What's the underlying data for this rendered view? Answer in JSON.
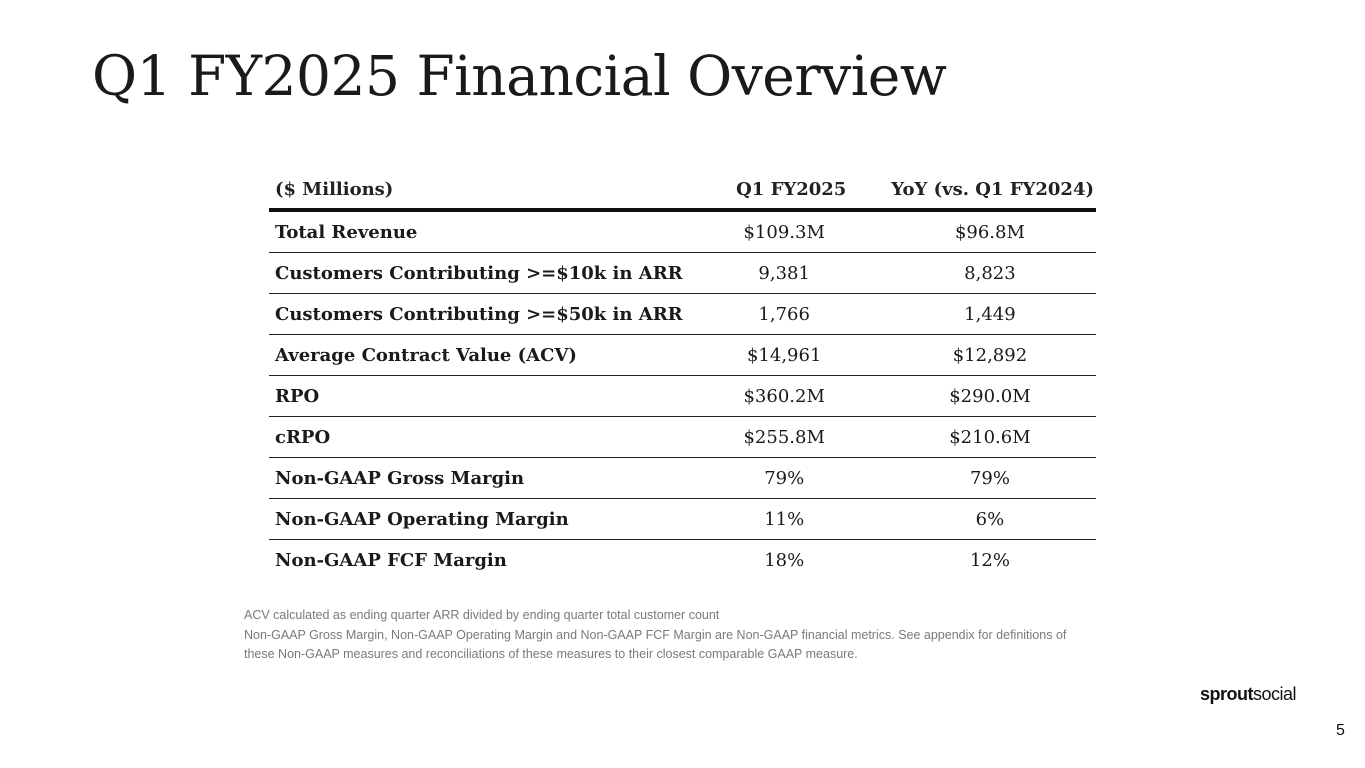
{
  "slide": {
    "title": "Q1 FY2025 Financial Overview",
    "page_number": "5"
  },
  "table": {
    "headers": [
      "($ Millions)",
      "Q1 FY2025",
      "YoY (vs. Q1 FY2024)"
    ],
    "rows": [
      [
        "Total Revenue",
        "$109.3M",
        "$96.8M"
      ],
      [
        "Customers Contributing >=$10k in ARR",
        "9,381",
        "8,823"
      ],
      [
        "Customers Contributing >=$50k in ARR",
        "1,766",
        "1,449"
      ],
      [
        "Average Contract Value (ACV)",
        "$14,961",
        "$12,892"
      ],
      [
        "RPO",
        "$360.2M",
        "$290.0M"
      ],
      [
        "cRPO",
        "$255.8M",
        "$210.6M"
      ],
      [
        "Non-GAAP Gross Margin",
        "79%",
        "79%"
      ],
      [
        "Non-GAAP Operating Margin",
        "11%",
        "6%"
      ],
      [
        "Non-GAAP FCF Margin",
        "18%",
        "12%"
      ]
    ]
  },
  "notes": [
    "ACV calculated as ending quarter ARR divided by ending quarter total customer count",
    "Non-GAAP Gross Margin, Non-GAAP Operating Margin and Non-GAAP FCF Margin are Non-GAAP financial metrics. See appendix for definitions of",
    "these Non-GAAP measures and reconciliations of these measures to their closest comparable GAAP measure."
  ],
  "logo": {
    "part1": "sprout",
    "part2": "social"
  }
}
